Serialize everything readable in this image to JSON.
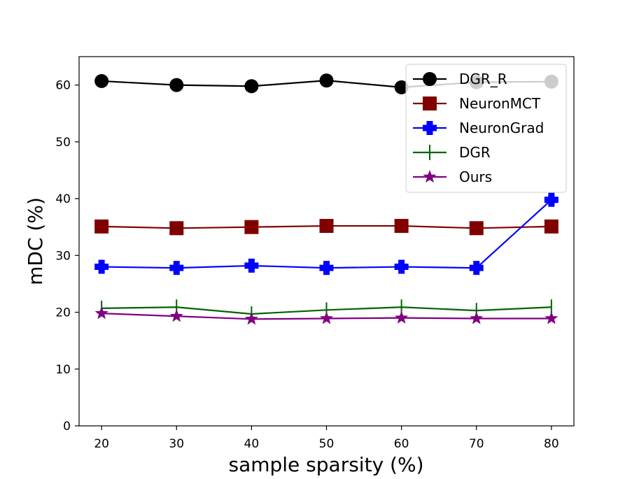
{
  "chart_data": {
    "type": "line",
    "title": "",
    "xlabel": "sample sparsity (%)",
    "ylabel": "mDC (%)",
    "x": [
      20,
      30,
      40,
      50,
      60,
      70,
      80
    ],
    "xticks": [
      20,
      30,
      40,
      50,
      60,
      70,
      80
    ],
    "yticks": [
      0,
      10,
      20,
      30,
      40,
      50,
      60
    ],
    "xlim": [
      17,
      83
    ],
    "ylim": [
      0,
      65
    ],
    "grid": false,
    "legend_position": "top-right",
    "series": [
      {
        "name": "DGR_R",
        "color": "#000000",
        "marker": "circle",
        "values": [
          60.7,
          60.0,
          59.8,
          60.8,
          59.6,
          60.5,
          60.6
        ]
      },
      {
        "name": "NeuronMCT",
        "color": "#800000",
        "marker": "square",
        "values": [
          35.1,
          34.8,
          35.0,
          35.2,
          35.2,
          34.8,
          35.1
        ]
      },
      {
        "name": "NeuronGrad",
        "color": "#0000ff",
        "marker": "plus",
        "values": [
          28.0,
          27.8,
          28.2,
          27.8,
          28.0,
          27.8,
          39.8
        ]
      },
      {
        "name": "DGR",
        "color": "#006400",
        "marker": "vline",
        "values": [
          20.7,
          20.9,
          19.7,
          20.4,
          20.9,
          20.3,
          20.9
        ]
      },
      {
        "name": "Ours",
        "color": "#800080",
        "marker": "star",
        "values": [
          19.8,
          19.3,
          18.8,
          18.9,
          19.0,
          18.9,
          18.9
        ]
      }
    ]
  }
}
